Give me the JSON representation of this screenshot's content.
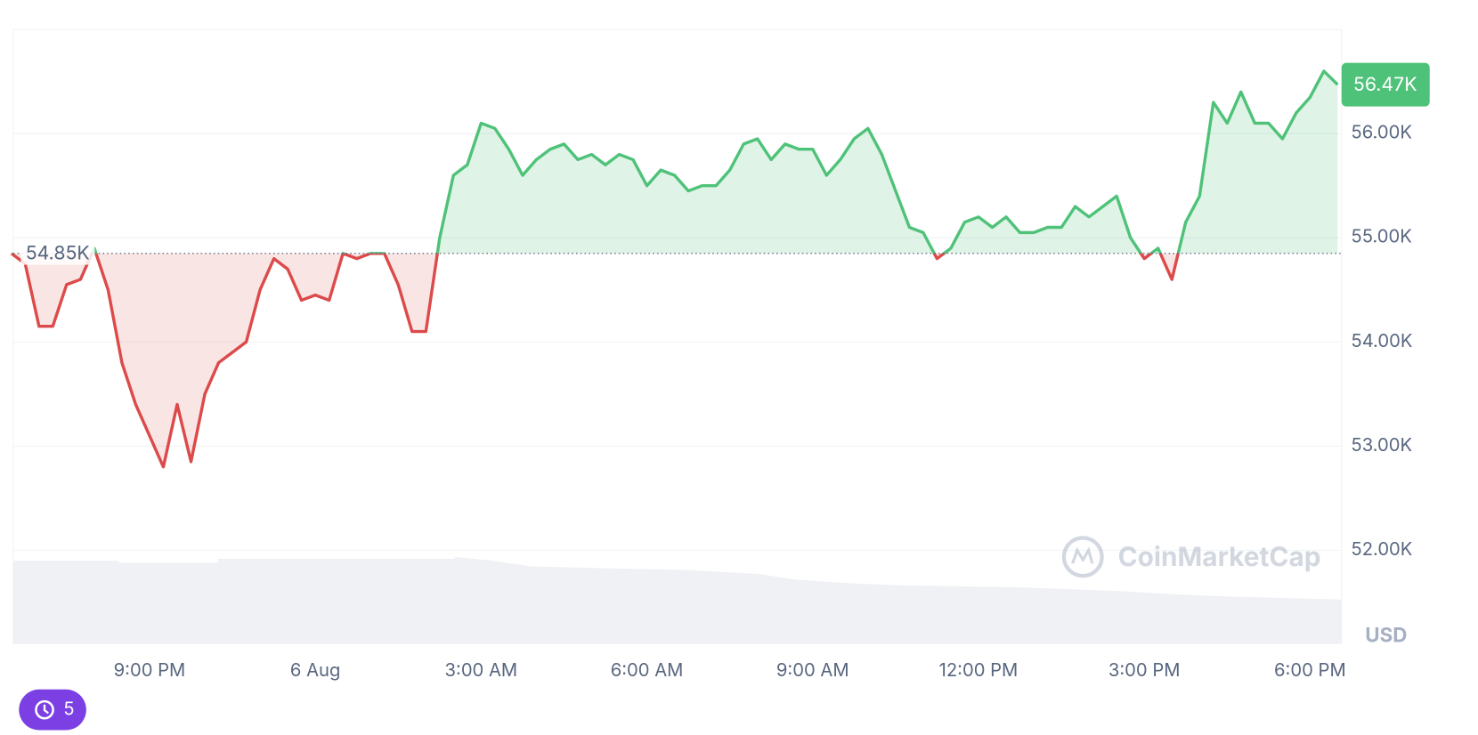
{
  "chart_data": {
    "type": "line",
    "x": [
      -5.5,
      -5.25,
      -5,
      -4.75,
      -4.5,
      -4.25,
      -4,
      -3.75,
      -3.5,
      -3.25,
      -3,
      -2.75,
      -2.5,
      -2.25,
      -2,
      -1.75,
      -1.5,
      -1.25,
      -1,
      -0.75,
      -0.5,
      -0.25,
      0,
      0.25,
      0.5,
      0.75,
      1,
      1.25,
      1.5,
      1.75,
      2,
      2.25,
      2.5,
      2.75,
      3,
      3.25,
      3.5,
      3.75,
      4,
      4.25,
      4.5,
      4.75,
      5,
      5.25,
      5.5,
      5.75,
      6,
      6.25,
      6.5,
      6.75,
      7,
      7.25,
      7.5,
      7.75,
      8,
      8.25,
      8.5,
      8.75,
      9,
      9.25,
      9.5,
      9.75,
      10,
      10.25,
      10.5,
      10.75,
      11,
      11.25,
      11.5,
      11.75,
      12,
      12.25,
      12.5,
      12.75,
      13,
      13.25,
      13.5,
      13.75,
      14,
      14.25,
      14.5,
      14.75,
      15,
      15.25,
      15.5,
      15.75,
      16,
      16.25,
      16.5,
      16.75,
      17,
      17.25,
      17.5,
      17.75,
      18,
      18.25,
      18.5
    ],
    "values": [
      54850,
      54750,
      54150,
      54150,
      54550,
      54600,
      54900,
      54500,
      53800,
      53400,
      53100,
      52800,
      53400,
      52850,
      53500,
      53800,
      53900,
      54000,
      54500,
      54800,
      54700,
      54400,
      54450,
      54400,
      54850,
      54800,
      54850,
      54850,
      54550,
      54100,
      54100,
      55000,
      55600,
      55700,
      56100,
      56050,
      55850,
      55600,
      55750,
      55850,
      55900,
      55750,
      55800,
      55700,
      55800,
      55750,
      55500,
      55650,
      55600,
      55450,
      55500,
      55500,
      55650,
      55900,
      55950,
      55750,
      55900,
      55850,
      55850,
      55600,
      55750,
      55950,
      56050,
      55800,
      55450,
      55100,
      55050,
      54800,
      54900,
      55150,
      55200,
      55100,
      55200,
      55050,
      55050,
      55100,
      55100,
      55300,
      55200,
      55300,
      55400,
      55000,
      54800,
      54900,
      54600,
      55150,
      55400,
      56300,
      56100,
      56400,
      56100,
      56100,
      55950,
      56200,
      56350,
      56600,
      56470
    ],
    "last_label": "56.47K",
    "baseline": {
      "value": 54850,
      "label": "54.85K"
    },
    "up_color": "#4fc279",
    "down_color": "#dc4a4a",
    "xlim": [
      -5.5,
      18.57
    ],
    "xticks": [
      {
        "value": -3,
        "label": "9:00 PM"
      },
      {
        "value": 0,
        "label": "6 Aug"
      },
      {
        "value": 3,
        "label": "3:00 AM"
      },
      {
        "value": 6,
        "label": "6:00 AM"
      },
      {
        "value": 9,
        "label": "9:00 AM"
      },
      {
        "value": 12,
        "label": "12:00 PM"
      },
      {
        "value": 15,
        "label": "3:00 PM"
      },
      {
        "value": 18,
        "label": "6:00 PM"
      }
    ],
    "ylim": [
      51100,
      57000
    ],
    "yticks": [
      {
        "value": 52000,
        "label": "52.00K"
      },
      {
        "value": 53000,
        "label": "53.00K"
      },
      {
        "value": 54000,
        "label": "54.00K"
      },
      {
        "value": 55000,
        "label": "55.00K"
      },
      {
        "value": 56000,
        "label": "56.00K"
      }
    ],
    "grid": true,
    "currency": "USD",
    "watermark": "CoinMarketCap"
  },
  "badge": {
    "count": 5
  }
}
